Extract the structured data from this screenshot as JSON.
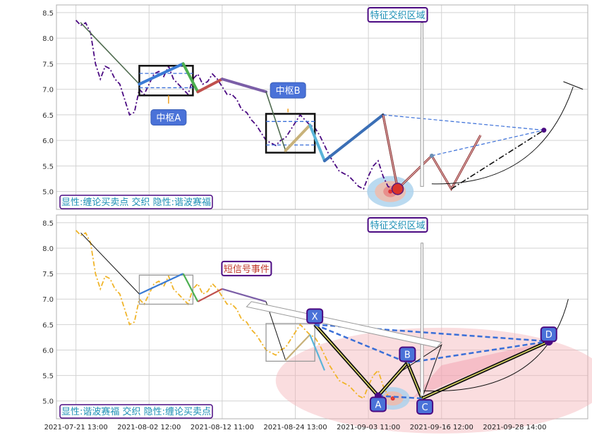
{
  "chart_data": [
    {
      "type": "line",
      "panel": "top",
      "ylim": [
        4.65,
        8.65
      ],
      "yticks": [
        "8.5",
        "8.0",
        "7.5",
        "7.0",
        "6.5",
        "6.0",
        "5.5",
        "5.0"
      ],
      "series": [
        {
          "color": "#4b0a82",
          "style": "dash-dot",
          "x": [
            0,
            1,
            2,
            3,
            4,
            5,
            6,
            7,
            8,
            9,
            10,
            11,
            12,
            13,
            14,
            15,
            16,
            17,
            18,
            19,
            20,
            21,
            22,
            23,
            24,
            25,
            26,
            27,
            28,
            29,
            30,
            31,
            32,
            33,
            34,
            35,
            36,
            37,
            38,
            39,
            40,
            41,
            42,
            43,
            44,
            45,
            46,
            47,
            48,
            49,
            50,
            51,
            52,
            53,
            54,
            55,
            56,
            57,
            58,
            59,
            60,
            61,
            62,
            63,
            64,
            65
          ],
          "y": [
            8.35,
            8.25,
            8.3,
            8.1,
            7.5,
            7.2,
            7.45,
            7.4,
            7.2,
            7.1,
            6.8,
            6.5,
            6.55,
            7.0,
            6.9,
            7.1,
            7.3,
            7.35,
            7.25,
            7.45,
            7.2,
            7.1,
            7.0,
            6.9,
            7.2,
            7.3,
            7.1,
            7.15,
            7.3,
            7.2,
            7.05,
            6.9,
            6.9,
            6.8,
            6.6,
            6.55,
            6.4,
            6.3,
            6.15,
            6.0,
            5.95,
            5.9,
            6.0,
            6.05,
            6.2,
            6.35,
            6.5,
            6.4,
            6.3,
            6.25,
            6.1,
            5.9,
            5.7,
            5.55,
            5.4,
            5.35,
            5.3,
            5.2,
            5.1,
            5.05,
            5.3,
            5.5,
            5.6,
            5.3,
            5.1,
            5.05
          ]
        }
      ],
      "zigzag": {
        "x": [
          1,
          13,
          22,
          25,
          30,
          39,
          43,
          48,
          51,
          63,
          66
        ],
        "y": [
          8.3,
          7.1,
          7.5,
          6.95,
          7.2,
          6.95,
          5.8,
          6.3,
          5.6,
          6.5,
          5.05
        ]
      },
      "pattern": {
        "x": [
          63,
          66,
          73,
          77,
          83
        ],
        "y": [
          6.5,
          5.05,
          5.7,
          5.05,
          6.1
        ]
      },
      "projection": {
        "from": [
          77,
          5.05
        ],
        "to": [
          96,
          6.2
        ]
      },
      "hubs": [
        {
          "x0": 13,
          "x1": 24,
          "y0": 6.88,
          "y1": 7.46,
          "label": "中枢A"
        },
        {
          "x0": 39,
          "x1": 49,
          "y0": 5.76,
          "y1": 6.52,
          "label": "中枢B"
        }
      ],
      "annotation_zone": "特征交织区域",
      "caption": "显性:缠论买卖点 交织 隐性:谐波赛福"
    },
    {
      "type": "line",
      "panel": "bottom",
      "ylim": [
        4.65,
        8.65
      ],
      "yticks": [
        "8.5",
        "8.0",
        "7.5",
        "7.0",
        "6.5",
        "6.0",
        "5.5",
        "5.0"
      ],
      "series": [
        {
          "color": "#f0b429",
          "style": "dash-dot",
          "x": [
            0,
            1,
            2,
            3,
            4,
            5,
            6,
            7,
            8,
            9,
            10,
            11,
            12,
            13,
            14,
            15,
            16,
            17,
            18,
            19,
            20,
            21,
            22,
            23,
            24,
            25,
            26,
            27,
            28,
            29,
            30,
            31,
            32,
            33,
            34,
            35,
            36,
            37,
            38,
            39,
            40,
            41,
            42,
            43,
            44,
            45,
            46,
            47,
            48,
            49,
            50,
            51,
            52,
            53,
            54,
            55,
            56,
            57,
            58,
            59,
            60,
            61,
            62,
            63,
            64,
            65
          ],
          "y": [
            8.35,
            8.25,
            8.3,
            8.1,
            7.5,
            7.2,
            7.45,
            7.4,
            7.2,
            7.1,
            6.8,
            6.5,
            6.55,
            7.0,
            6.9,
            7.1,
            7.3,
            7.35,
            7.25,
            7.45,
            7.2,
            7.1,
            7.0,
            6.9,
            7.2,
            7.3,
            7.1,
            7.15,
            7.3,
            7.2,
            7.05,
            6.9,
            6.9,
            6.8,
            6.6,
            6.55,
            6.4,
            6.3,
            6.15,
            6.0,
            5.95,
            5.9,
            6.0,
            6.05,
            6.2,
            6.35,
            6.5,
            6.4,
            6.3,
            6.25,
            6.1,
            5.9,
            5.7,
            5.55,
            5.4,
            5.35,
            5.3,
            5.2,
            5.1,
            5.05,
            5.3,
            5.5,
            5.6,
            5.3,
            5.1,
            5.05
          ]
        }
      ],
      "harmonic_points": [
        {
          "label": "X",
          "x": 49,
          "y": 6.5
        },
        {
          "label": "A",
          "x": 62,
          "y": 5.1
        },
        {
          "label": "B",
          "x": 68,
          "y": 5.75
        },
        {
          "label": "C",
          "x": 71,
          "y": 5.05
        },
        {
          "label": "D",
          "x": 97,
          "y": 6.17
        }
      ],
      "annotation_zone": "特征交织区域",
      "short_signal": "短信号事件",
      "caption": "显性:谐波赛福 交织 隐性:缠论买卖点"
    }
  ],
  "x_axis": {
    "ticks": [
      "2021-07-21 13:00",
      "2021-08-02 12:00",
      "2021-08-12 11:00",
      "2021-08-24 13:00",
      "2021-09-03 11:00",
      "2021-09-16 12:00",
      "2021-09-28 14:00"
    ],
    "tick_index": [
      0,
      15,
      30,
      45,
      60,
      75,
      90
    ],
    "xlim": [
      -4,
      105
    ]
  }
}
